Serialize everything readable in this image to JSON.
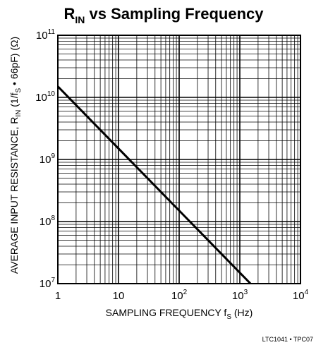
{
  "chart_data": {
    "type": "line",
    "title": {
      "base": "R",
      "sub": "IN",
      "rest": " vs Sampling Frequency"
    },
    "x_scale": "log",
    "y_scale": "log",
    "xlim": [
      1,
      10000
    ],
    "ylim": [
      10000000,
      100000000000
    ],
    "grid": true,
    "x_tick_labels": [
      {
        "value": 1,
        "base": "1",
        "exp": ""
      },
      {
        "value": 10,
        "base": "10",
        "exp": ""
      },
      {
        "value": 100,
        "base": "10",
        "exp": "2"
      },
      {
        "value": 1000,
        "base": "10",
        "exp": "3"
      },
      {
        "value": 10000,
        "base": "10",
        "exp": "4"
      }
    ],
    "y_tick_labels": [
      {
        "value": 10000000,
        "base": "10",
        "exp": "7"
      },
      {
        "value": 100000000,
        "base": "10",
        "exp": "8"
      },
      {
        "value": 1000000000,
        "base": "10",
        "exp": "9"
      },
      {
        "value": 10000000000,
        "base": "10",
        "exp": "10"
      },
      {
        "value": 100000000000,
        "base": "10",
        "exp": "11"
      }
    ],
    "xlabel": {
      "pre": "SAMPLING FREQUENCY f",
      "sub": "S",
      "post": " (Hz)"
    },
    "ylabel": {
      "p1": "AVERAGE INPUT RESISTANCE, R",
      "s1": "IN",
      "p2": " (1/f",
      "s2": "S",
      "p3": " • 66pF) (Ω)"
    },
    "series": [
      {
        "x": [
          1,
          1500
        ],
        "y": [
          15000000000,
          10000000
        ]
      }
    ],
    "figure_id": "LTC1041 • TPC07"
  }
}
